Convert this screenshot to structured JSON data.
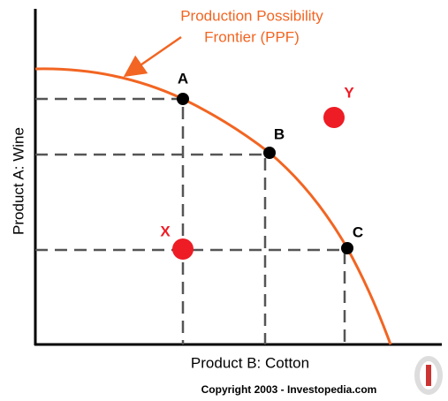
{
  "title_lines": [
    "Production Possibility",
    "Frontier (PPF)"
  ],
  "y_axis_label": "Product A:  Wine",
  "x_axis_label": "Product B: Cotton",
  "points": [
    {
      "label": "A"
    },
    {
      "label": "B"
    },
    {
      "label": "C"
    },
    {
      "label": "X"
    },
    {
      "label": "Y"
    }
  ],
  "copyright": "Copyright 2003 - Investopedia.com"
}
